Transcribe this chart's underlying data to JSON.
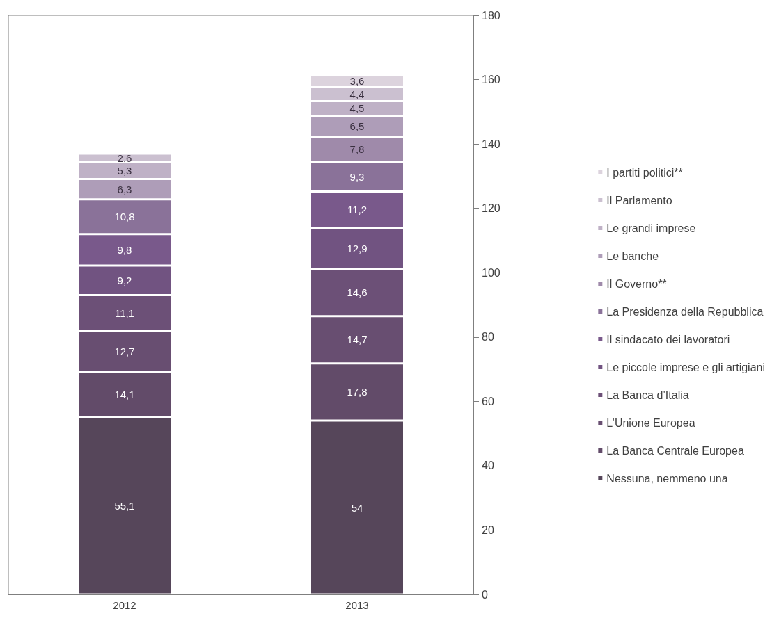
{
  "chart_data": {
    "type": "bar",
    "stacked": true,
    "legend": "right",
    "grid": false,
    "categories": [
      "2012",
      "2013"
    ],
    "ylim": [
      0,
      180
    ],
    "yticks": [
      0,
      20,
      40,
      60,
      80,
      100,
      120,
      140,
      160,
      180
    ],
    "series": [
      {
        "name": "Nessuna, nemmeno una",
        "color": "#56465a",
        "values": [
          55.1,
          54
        ],
        "value_labels": [
          "55,1",
          "54"
        ]
      },
      {
        "name": "La Banca Centrale Europea",
        "color": "#624b69",
        "values": [
          14.1,
          17.8
        ],
        "value_labels": [
          "14,1",
          "17,8"
        ]
      },
      {
        "name": "L’Unione Europea",
        "color": "#684e71",
        "values": [
          12.7,
          14.7
        ],
        "value_labels": [
          "12,7",
          "14,7"
        ]
      },
      {
        "name": "La Banca d’Italia",
        "color": "#6c5077",
        "values": [
          11.1,
          14.6
        ],
        "value_labels": [
          "11,1",
          "14,6"
        ]
      },
      {
        "name": "Le piccole imprese e gli artigiani",
        "color": "#715381",
        "values": [
          9.2,
          12.9
        ],
        "value_labels": [
          "9,2",
          "12,9"
        ]
      },
      {
        "name": "Il sindacato dei lavoratori",
        "color": "#79598b",
        "values": [
          9.8,
          11.2
        ],
        "value_labels": [
          "9,8",
          "11,2"
        ]
      },
      {
        "name": "La Presidenza della Repubblica",
        "color": "#8a7299",
        "values": [
          10.8,
          9.3
        ],
        "value_labels": [
          "10,8",
          "9,3"
        ]
      },
      {
        "name": "Il Governo**",
        "color": "#9f8aaa",
        "values": [
          null,
          7.8
        ],
        "value_labels": [
          null,
          "7,8"
        ]
      },
      {
        "name": "Le banche",
        "color": "#ae9db8",
        "values": [
          6.3,
          6.5
        ],
        "value_labels": [
          "6,3",
          "6,5"
        ]
      },
      {
        "name": "Le grandi imprese",
        "color": "#bfb1c6",
        "values": [
          5.3,
          4.5
        ],
        "value_labels": [
          "5,3",
          "4,5"
        ]
      },
      {
        "name": "Il Parlamento",
        "color": "#cbc0d0",
        "values": [
          2.6,
          4.4
        ],
        "value_labels": [
          "2,6",
          "4,4"
        ]
      },
      {
        "name": "I partiti politici**",
        "color": "#dcd3dd",
        "values": [
          null,
          3.6
        ],
        "value_labels": [
          null,
          "3,6"
        ]
      }
    ]
  }
}
